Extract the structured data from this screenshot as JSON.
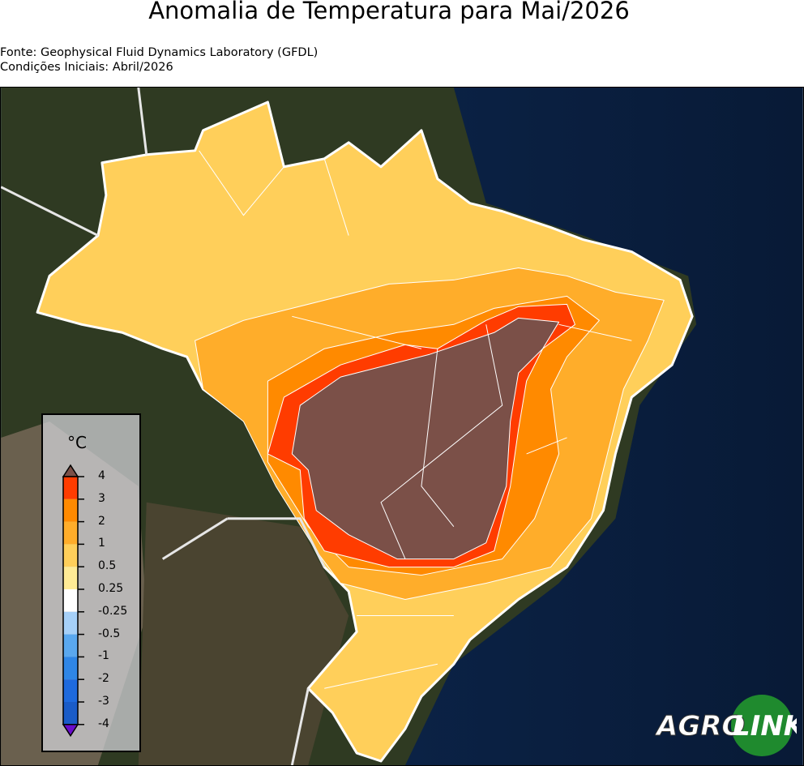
{
  "title": "Anomalia de Temperatura para Mai/2026",
  "source": "Fonte: Geophysical Fluid Dynamics Laboratory (GFDL)",
  "initial": "Condições Iniciais: Abril/2026",
  "legend": {
    "unit": "°C",
    "ticks": [
      "4",
      "3",
      "2",
      "1",
      "0.5",
      "0.25",
      "-0.25",
      "-0.5",
      "-1",
      "-2",
      "-3",
      "-4"
    ],
    "colors": [
      "#7b5048",
      "#ff3c00",
      "#ff8a00",
      "#ffad2a",
      "#ffcf5a",
      "#ffeb95",
      "#ffffff",
      "#a6d0f8",
      "#5aa8ef",
      "#2f86e6",
      "#1e6ade",
      "#1a5cc8",
      "#6a0dcc"
    ]
  },
  "logo": {
    "left": "AGRO",
    "right": "LINK"
  }
}
